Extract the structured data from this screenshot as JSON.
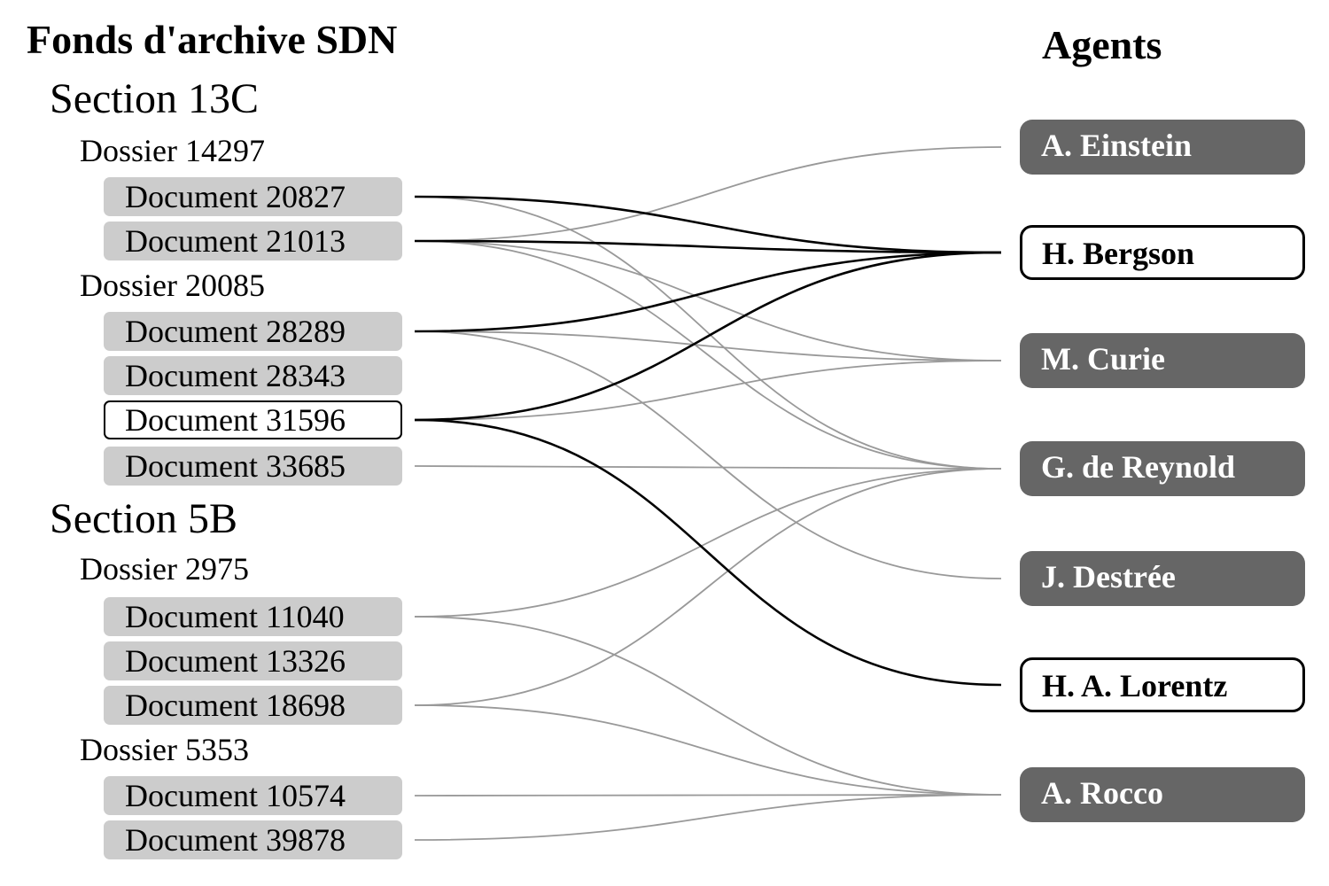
{
  "archive_title": "Fonds d'archive SDN",
  "agents_title": "Agents",
  "sections": [
    {
      "label": "Section 13C",
      "dossiers": [
        {
          "label": "Dossier 14297",
          "documents": [
            {
              "id": "d20827",
              "label": "Document 20827",
              "selected": false
            },
            {
              "id": "d21013",
              "label": "Document 21013",
              "selected": false
            }
          ]
        },
        {
          "label": "Dossier 20085",
          "documents": [
            {
              "id": "d28289",
              "label": "Document 28289",
              "selected": false
            },
            {
              "id": "d28343",
              "label": "Document 28343",
              "selected": false
            },
            {
              "id": "d31596",
              "label": "Document 31596",
              "selected": true
            },
            {
              "id": "d33685",
              "label": "Document 33685",
              "selected": false
            }
          ]
        }
      ]
    },
    {
      "label": "Section 5B",
      "dossiers": [
        {
          "label": "Dossier 2975",
          "documents": [
            {
              "id": "d11040",
              "label": "Document 11040",
              "selected": false
            },
            {
              "id": "d13326",
              "label": "Document 13326",
              "selected": false
            },
            {
              "id": "d18698",
              "label": "Document 18698",
              "selected": false
            }
          ]
        },
        {
          "label": "Dossier 5353",
          "documents": [
            {
              "id": "d10574",
              "label": "Document 10574",
              "selected": false
            },
            {
              "id": "d39878",
              "label": "Document 39878",
              "selected": false
            }
          ]
        }
      ]
    }
  ],
  "agents": [
    {
      "id": "einstein",
      "label": "A. Einstein",
      "selected": false
    },
    {
      "id": "bergson",
      "label": "H. Bergson",
      "selected": true
    },
    {
      "id": "curie",
      "label": "M. Curie",
      "selected": false
    },
    {
      "id": "reynold",
      "label": "G. de Reynold",
      "selected": false
    },
    {
      "id": "destree",
      "label": "J. Destrée",
      "selected": false
    },
    {
      "id": "lorentz",
      "label": "H. A. Lorentz",
      "selected": true
    },
    {
      "id": "rocco",
      "label": "A. Rocco",
      "selected": false
    }
  ],
  "links": [
    {
      "from": "d20827",
      "to": "bergson",
      "highlighted": true
    },
    {
      "from": "d20827",
      "to": "reynold",
      "highlighted": false
    },
    {
      "from": "d21013",
      "to": "einstein",
      "highlighted": false
    },
    {
      "from": "d21013",
      "to": "bergson",
      "highlighted": true
    },
    {
      "from": "d21013",
      "to": "curie",
      "highlighted": false
    },
    {
      "from": "d21013",
      "to": "reynold",
      "highlighted": false
    },
    {
      "from": "d28289",
      "to": "bergson",
      "highlighted": true
    },
    {
      "from": "d28289",
      "to": "curie",
      "highlighted": false
    },
    {
      "from": "d28289",
      "to": "destree",
      "highlighted": false
    },
    {
      "from": "d31596",
      "to": "bergson",
      "highlighted": true
    },
    {
      "from": "d31596",
      "to": "curie",
      "highlighted": false
    },
    {
      "from": "d31596",
      "to": "lorentz",
      "highlighted": true
    },
    {
      "from": "d33685",
      "to": "reynold",
      "highlighted": false
    },
    {
      "from": "d11040",
      "to": "reynold",
      "highlighted": false
    },
    {
      "from": "d11040",
      "to": "rocco",
      "highlighted": false
    },
    {
      "from": "d18698",
      "to": "reynold",
      "highlighted": false
    },
    {
      "from": "d18698",
      "to": "rocco",
      "highlighted": false
    },
    {
      "from": "d10574",
      "to": "rocco",
      "highlighted": false
    },
    {
      "from": "d39878",
      "to": "rocco",
      "highlighted": false
    }
  ],
  "colors": {
    "document_fill": "#cccccc",
    "agent_fill": "#666666",
    "link_default": "#999999",
    "link_highlight": "#000000",
    "selected_border": "#000000"
  }
}
